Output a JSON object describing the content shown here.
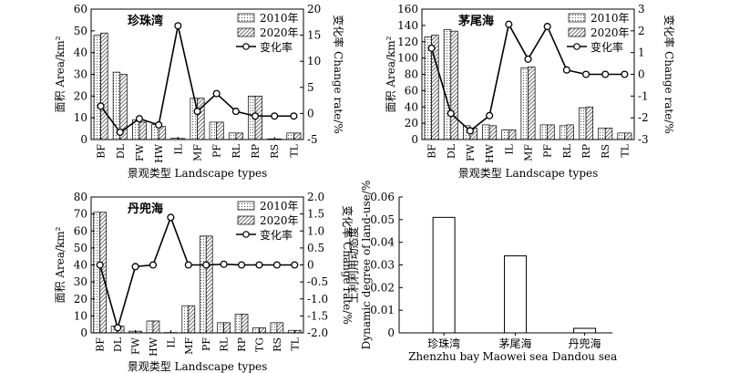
{
  "chart_data": [
    {
      "type": "bar",
      "title": "珍珠湾",
      "categories": [
        "BF",
        "DL",
        "FW",
        "HW",
        "IL",
        "MF",
        "PF",
        "RL",
        "RP",
        "RS",
        "TL"
      ],
      "series": [
        {
          "name": "2010年",
          "values": [
            48,
            31,
            9,
            7,
            0.6,
            19,
            8,
            3,
            20,
            0.3,
            3
          ]
        },
        {
          "name": "2020年",
          "values": [
            49,
            30,
            8,
            6,
            0.5,
            19,
            8,
            3,
            20,
            0.3,
            3
          ]
        }
      ],
      "line_series": {
        "name": "变化率",
        "values": [
          1.4,
          -3.6,
          -1.0,
          -2.2,
          16.8,
          0.4,
          3.8,
          0.4,
          -0.5,
          -0.5,
          -0.5
        ]
      },
      "xlabel": "景观类型 Landscape types",
      "ylabel": "面积 Area/km²",
      "y2label": "变化率 Change rate/%",
      "ylim": [
        0,
        60
      ],
      "yticks": [
        0,
        10,
        20,
        30,
        40,
        50,
        60
      ],
      "y2lim": [
        -5,
        20
      ],
      "y2ticks": [
        -5,
        0,
        5,
        10,
        15,
        20
      ],
      "legend_position": "top-right"
    },
    {
      "type": "bar",
      "title": "茅尾海",
      "categories": [
        "BF",
        "DL",
        "FW",
        "HW",
        "IL",
        "MF",
        "PF",
        "RL",
        "RP",
        "RS",
        "TL"
      ],
      "series": [
        {
          "name": "2010年",
          "values": [
            126,
            135,
            17,
            18,
            12,
            88,
            18,
            17,
            39,
            14,
            8
          ]
        },
        {
          "name": "2020年",
          "values": [
            128,
            133,
            14,
            17,
            12,
            89,
            18,
            18,
            40,
            14,
            8
          ]
        }
      ],
      "line_series": {
        "name": "变化率",
        "values": [
          1.2,
          -1.8,
          -2.6,
          -1.9,
          2.3,
          0.7,
          2.2,
          0.2,
          0.0,
          0.0,
          0.0
        ]
      },
      "xlabel": "景观类型 Landscape types",
      "ylabel": "面积 Area/km²",
      "y2label": "变化率 Change rate/%",
      "ylim": [
        0,
        160
      ],
      "yticks": [
        0,
        20,
        40,
        60,
        80,
        100,
        120,
        140,
        160
      ],
      "y2lim": [
        -3,
        3
      ],
      "y2ticks": [
        -3,
        -2,
        -1,
        0,
        1,
        2,
        3
      ],
      "legend_position": "top-right"
    },
    {
      "type": "bar",
      "title": "丹兜海",
      "categories": [
        "BF",
        "DL",
        "FW",
        "HW",
        "IL",
        "MF",
        "PF",
        "RL",
        "RP",
        "TG",
        "RS",
        "TL"
      ],
      "series": [
        {
          "name": "2010年",
          "values": [
            71,
            4,
            1,
            7,
            0.2,
            16,
            57,
            6,
            11,
            3,
            6,
            1.5
          ]
        },
        {
          "name": "2020年",
          "values": [
            71,
            4,
            1,
            7,
            0.2,
            16,
            57,
            6,
            11,
            3,
            6,
            1.5
          ]
        }
      ],
      "line_series": {
        "name": "变化率",
        "values": [
          0.0,
          -1.85,
          -0.05,
          0.0,
          1.4,
          0.0,
          0.0,
          0.02,
          0.0,
          0.0,
          0.0,
          0.0
        ]
      },
      "xlabel": "景观类型 Landscape types",
      "ylabel": "面积 Area/km²",
      "y2label": "变化率 Change rate/%",
      "ylim": [
        0,
        80
      ],
      "yticks": [
        0,
        10,
        20,
        30,
        40,
        50,
        60,
        70,
        80
      ],
      "y2lim": [
        -2.0,
        2.0
      ],
      "y2ticks": [
        "-2.0",
        "-1.5",
        "-1.0",
        "-0.5",
        "0",
        "0.5",
        "1.0",
        "1.5",
        "2.0"
      ],
      "legend_position": "top-right"
    },
    {
      "type": "bar",
      "categories": [
        "珍珠湾\nZhenzhu bay",
        "茅尾海\nMaowei sea",
        "丹兜海\nDandou sea"
      ],
      "values": [
        0.051,
        0.034,
        0.002
      ],
      "ylabel": "土利利用动态度\nDynamic degree of land-use/%",
      "ylim": [
        0,
        0.06
      ],
      "yticks": [
        "0",
        "0.01",
        "0.02",
        "0.03",
        "0.04",
        "0.05",
        "0.06"
      ]
    }
  ]
}
